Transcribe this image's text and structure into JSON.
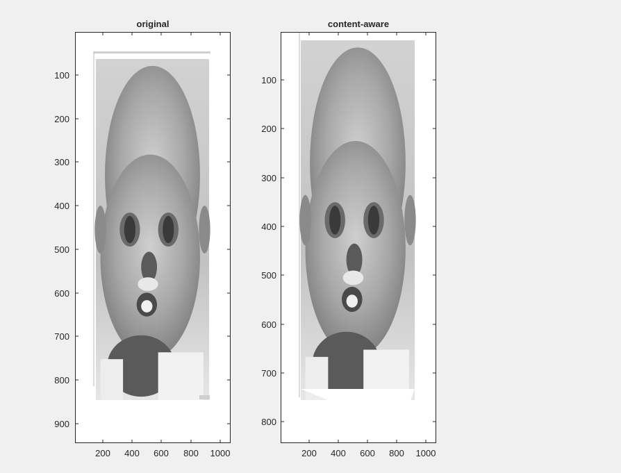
{
  "chart_data": [
    {
      "type": "image",
      "title": "original",
      "xlabel": "",
      "ylabel": "",
      "xlim": [
        1,
        1060
      ],
      "ylim": [
        955,
        5
      ],
      "y_reversed": true,
      "xticks": [
        200,
        400,
        600,
        800,
        1000
      ],
      "yticks": [
        100,
        200,
        300,
        400,
        500,
        600,
        700,
        800,
        900
      ],
      "colormap": "gray",
      "grid": false
    },
    {
      "type": "image",
      "title": "content-aware",
      "xlabel": "",
      "ylabel": "",
      "xlim": [
        1,
        1060
      ],
      "ylim": [
        845,
        5
      ],
      "y_reversed": true,
      "xticks": [
        200,
        400,
        600,
        800,
        1000
      ],
      "yticks": [
        100,
        200,
        300,
        400,
        500,
        600,
        700,
        800
      ],
      "colormap": "gray",
      "grid": false
    }
  ],
  "colors": {
    "figure_bg": "#f0f0f0",
    "axes_bg": "#ffffff",
    "axis_line": "#262626"
  }
}
